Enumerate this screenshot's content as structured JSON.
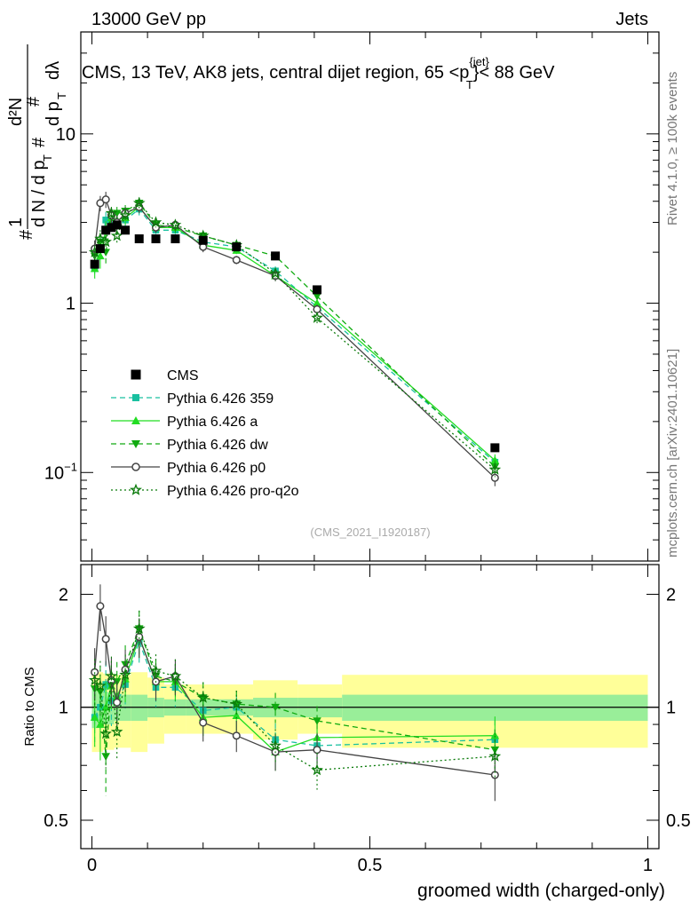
{
  "header": {
    "energy_label": "13000 GeV pp",
    "category_label": "Jets",
    "plot_title": "CMS, 13 TeV, AK8 jets, central dijet region, 65 < p_T^{jet} < 88 GeV",
    "ylabel_main": "1/(dN/dp_T) d²N/(dp_T dλ)",
    "side_label_top": "Rivet 4.1.0, ≥ 100k events",
    "side_label_bottom": "mcplots.cern.ch [arXiv:2401.10621]",
    "analysis_id": "(CMS_2021_I1920187)"
  },
  "colors": {
    "data": "#000000",
    "p359": "#19c0a0",
    "pa": "#22dd22",
    "pdw": "#10aa10",
    "pp0": "#444444",
    "pq2o": "#0a7a0a",
    "band_inner": "#99ee99",
    "band_outer": "#ffff99"
  },
  "chart_data": [
    {
      "type": "line",
      "title": "CMS, 13 TeV, AK8 jets, central dijet region, 65 < p_T^{jet} < 88 GeV",
      "xlabel": "groomed width (charged-only)",
      "ylabel": "1/(dN/dp_T) d²N/(dp_T dλ)",
      "yscale": "log",
      "xlim": [
        -0.02,
        1.02
      ],
      "ylim": [
        0.03,
        40
      ],
      "y_ticks": [
        0.1,
        1,
        10
      ],
      "y_tick_labels": [
        "10^{-1}",
        "1",
        "10"
      ],
      "legend_position": "middle-left",
      "x": [
        0.005,
        0.015,
        0.025,
        0.035,
        0.045,
        0.06,
        0.085,
        0.115,
        0.15,
        0.2,
        0.26,
        0.33,
        0.405,
        0.725
      ],
      "data": {
        "name": "CMS",
        "values": [
          1.7,
          2.1,
          2.7,
          2.8,
          2.9,
          2.7,
          2.4,
          2.4,
          2.4,
          2.35,
          2.15,
          1.9,
          1.2,
          0.14
        ],
        "errors": [
          0.1,
          0.12,
          0.15,
          0.15,
          0.15,
          0.12,
          0.1,
          0.1,
          0.1,
          0.1,
          0.08,
          0.08,
          0.05,
          0.006
        ]
      },
      "series": [
        {
          "name": "Pythia 6.426 359",
          "key": "p359",
          "style": "dashed",
          "marker": "square",
          "values": [
            1.6,
            2.1,
            3.1,
            2.9,
            3.0,
            3.1,
            3.6,
            2.7,
            2.7,
            2.3,
            2.15,
            1.55,
            0.95,
            0.115
          ],
          "errors": [
            0.2,
            0.3,
            0.35,
            0.3,
            0.3,
            0.3,
            0.3,
            0.2,
            0.2,
            0.15,
            0.1,
            0.1,
            0.06,
            0.01
          ]
        },
        {
          "name": "Pythia 6.426 a",
          "key": "pa",
          "style": "solid",
          "marker": "triangle-up",
          "values": [
            1.6,
            1.9,
            2.7,
            3.2,
            3.1,
            3.2,
            3.7,
            2.8,
            2.8,
            2.2,
            2.05,
            1.45,
            1.0,
            0.118
          ],
          "errors": [
            0.2,
            0.3,
            0.35,
            0.3,
            0.3,
            0.3,
            0.3,
            0.2,
            0.2,
            0.15,
            0.1,
            0.1,
            0.06,
            0.01
          ]
        },
        {
          "name": "Pythia 6.426 dw",
          "key": "pdw",
          "style": "dashed",
          "marker": "triangle-down",
          "values": [
            1.9,
            2.3,
            2.0,
            3.2,
            3.4,
            3.5,
            3.9,
            2.9,
            2.8,
            2.5,
            2.2,
            1.9,
            1.1,
            0.108
          ],
          "errors": [
            0.2,
            0.3,
            0.35,
            0.3,
            0.3,
            0.3,
            0.3,
            0.2,
            0.2,
            0.15,
            0.1,
            0.1,
            0.06,
            0.01
          ]
        },
        {
          "name": "Pythia 6.426 p0",
          "key": "pp0",
          "style": "solid",
          "marker": "open-circle",
          "values": [
            2.1,
            3.9,
            4.1,
            3.3,
            3.0,
            3.4,
            3.7,
            2.8,
            2.9,
            2.15,
            1.8,
            1.45,
            0.92,
            0.093
          ],
          "errors": [
            0.25,
            0.4,
            0.45,
            0.35,
            0.3,
            0.3,
            0.3,
            0.2,
            0.2,
            0.15,
            0.1,
            0.1,
            0.06,
            0.01
          ]
        },
        {
          "name": "Pythia 6.426 pro-q2o",
          "key": "pq2o",
          "style": "dotted",
          "marker": "star",
          "values": [
            2.0,
            2.4,
            2.3,
            3.4,
            2.5,
            3.3,
            3.9,
            3.0,
            2.9,
            2.5,
            2.2,
            1.5,
            0.82,
            0.104
          ],
          "errors": [
            0.2,
            0.3,
            0.35,
            0.3,
            0.3,
            0.3,
            0.3,
            0.2,
            0.2,
            0.15,
            0.1,
            0.1,
            0.06,
            0.01
          ]
        }
      ]
    },
    {
      "type": "line",
      "title": "",
      "xlabel": "groomed width (charged-only)",
      "ylabel": "Ratio to CMS",
      "yscale": "log",
      "xlim": [
        -0.02,
        1.02
      ],
      "ylim": [
        0.42,
        2.4
      ],
      "y_ticks": [
        0.5,
        1,
        2
      ],
      "x_ticks": [
        0,
        0.5,
        1
      ],
      "reference": 1,
      "bands": {
        "edges": [
          0.0,
          0.01,
          0.02,
          0.03,
          0.04,
          0.05,
          0.07,
          0.1,
          0.13,
          0.17,
          0.23,
          0.29,
          0.37,
          0.45,
          1.0
        ],
        "inner": [
          0.12,
          0.12,
          0.1,
          0.1,
          0.08,
          0.08,
          0.08,
          0.06,
          0.05,
          0.05,
          0.05,
          0.06,
          0.06,
          0.08
        ],
        "outer": [
          0.12,
          0.12,
          0.13,
          0.13,
          0.14,
          0.14,
          0.16,
          0.14,
          0.1,
          0.1,
          0.1,
          0.12,
          0.09,
          0.14
        ]
      },
      "series": [
        {
          "name": "Pythia 6.426 359",
          "key": "p359",
          "style": "dashed",
          "marker": "square",
          "values": [
            0.94,
            1.0,
            1.15,
            1.04,
            1.03,
            1.15,
            1.5,
            1.13,
            1.13,
            0.98,
            1.0,
            0.82,
            0.79,
            0.82
          ]
        },
        {
          "name": "Pythia 6.426 a",
          "key": "pa",
          "style": "solid",
          "marker": "triangle-up",
          "values": [
            0.94,
            0.9,
            1.0,
            1.14,
            1.07,
            1.19,
            1.54,
            1.17,
            1.17,
            0.94,
            0.95,
            0.76,
            0.83,
            0.84
          ]
        },
        {
          "name": "Pythia 6.426 dw",
          "key": "pdw",
          "style": "dashed",
          "marker": "triangle-down",
          "values": [
            1.12,
            1.1,
            0.74,
            1.14,
            1.17,
            1.3,
            1.62,
            1.21,
            1.17,
            1.06,
            1.02,
            1.0,
            0.92,
            0.77
          ]
        },
        {
          "name": "Pythia 6.426 p0",
          "key": "pp0",
          "style": "solid",
          "marker": "open-circle",
          "values": [
            1.24,
            1.86,
            1.52,
            1.18,
            1.03,
            1.26,
            1.54,
            1.17,
            1.21,
            0.91,
            0.84,
            0.76,
            0.77,
            0.66
          ]
        },
        {
          "name": "Pythia 6.426 pro-q2o",
          "key": "pq2o",
          "style": "dotted",
          "marker": "star",
          "values": [
            1.18,
            1.14,
            0.85,
            1.21,
            0.86,
            1.22,
            1.62,
            1.25,
            1.21,
            1.06,
            1.02,
            0.79,
            0.68,
            0.74
          ]
        }
      ]
    }
  ]
}
